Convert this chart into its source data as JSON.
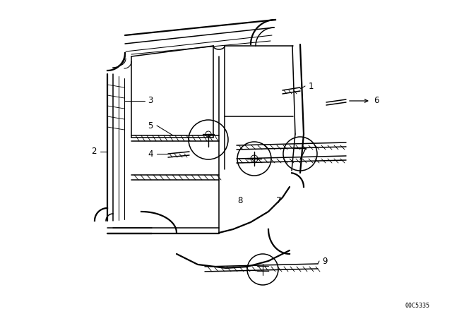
{
  "bg_color": "#ffffff",
  "diagram_id": "00C5335",
  "fig_width": 6.4,
  "fig_height": 4.48,
  "dpi": 100,
  "color": "#000000",
  "lw_outer": 1.6,
  "lw_mid": 1.1,
  "lw_thin": 0.75,
  "fs_label": 8.5
}
